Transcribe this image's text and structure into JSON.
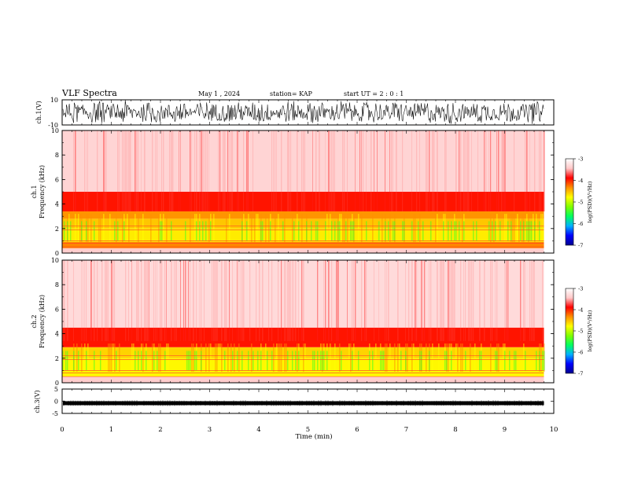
{
  "header": {
    "title": "VLF Spectra",
    "date": "May 1 , 2024",
    "station": "station= KAP",
    "start": "start UT = 2 : 0 : 1"
  },
  "chart_data": [
    {
      "type": "line",
      "name": "ch1-waveform",
      "ylabel": "ch.1(V)",
      "ylim": [
        -10,
        10
      ],
      "y_tick_labels": [
        "10",
        "-10"
      ],
      "xlim": [
        0,
        10
      ]
    },
    {
      "type": "heatmap",
      "name": "ch1-spectrogram",
      "ylabel": "ch.1 Frequency (kHz)",
      "ylim": [
        0,
        10
      ],
      "y_tick_labels": [
        "0",
        "2",
        "4",
        "6",
        "8",
        "10"
      ],
      "data_end_min": 9.8,
      "color_levels": [
        {
          "fmin": 0.0,
          "fmax": 0.4,
          "level": -3.4
        },
        {
          "fmin": 0.4,
          "fmax": 0.9,
          "level": -4.3
        },
        {
          "fmin": 0.9,
          "fmax": 2.0,
          "level": -4.7
        },
        {
          "fmin": 2.0,
          "fmax": 2.8,
          "level": -4.55
        },
        {
          "fmin": 2.8,
          "fmax": 3.4,
          "level": -4.35
        },
        {
          "fmin": 3.4,
          "fmax": 5.0,
          "level": -3.95
        },
        {
          "fmin": 5.0,
          "fmax": 10.0,
          "level": -3.35
        }
      ]
    },
    {
      "type": "heatmap",
      "name": "ch2-spectrogram",
      "ylabel": "ch.2 Frequency (kHz)",
      "ylim": [
        0,
        10
      ],
      "y_tick_labels": [
        "0",
        "2",
        "4",
        "6",
        "8",
        "10"
      ],
      "data_end_min": 9.8,
      "color_levels": [
        {
          "fmin": 0.0,
          "fmax": 0.5,
          "level": -3.4
        },
        {
          "fmin": 0.5,
          "fmax": 2.0,
          "level": -4.75
        },
        {
          "fmin": 2.0,
          "fmax": 2.9,
          "level": -4.6
        },
        {
          "fmin": 2.9,
          "fmax": 4.5,
          "level": -3.95
        },
        {
          "fmin": 4.5,
          "fmax": 10.0,
          "level": -3.3
        }
      ]
    },
    {
      "type": "line",
      "name": "ch3-waveform",
      "ylabel": "ch.3(V)",
      "ylim": [
        -5,
        5
      ],
      "y_tick_labels": [
        "5",
        "0",
        "-5"
      ],
      "level": -0.8,
      "xlim": [
        0,
        10
      ]
    }
  ],
  "colorbar": {
    "label": "log(PSD)(V²/Hz)",
    "range": [
      -7,
      -3
    ],
    "tick_labels": [
      "-3",
      "-4",
      "-5",
      "-6",
      "-7"
    ],
    "colors": [
      "#000090",
      "#0000ff",
      "#00b0ff",
      "#00ff60",
      "#80ff00",
      "#ffff00",
      "#ff9000",
      "#ff0000",
      "#ffc8c8",
      "#ffffff"
    ]
  },
  "x_axis": {
    "label": "Time (min)",
    "range": [
      0,
      10
    ],
    "tick_labels": [
      "0",
      "1",
      "2",
      "3",
      "4",
      "5",
      "6",
      "7",
      "8",
      "9",
      "10"
    ]
  }
}
